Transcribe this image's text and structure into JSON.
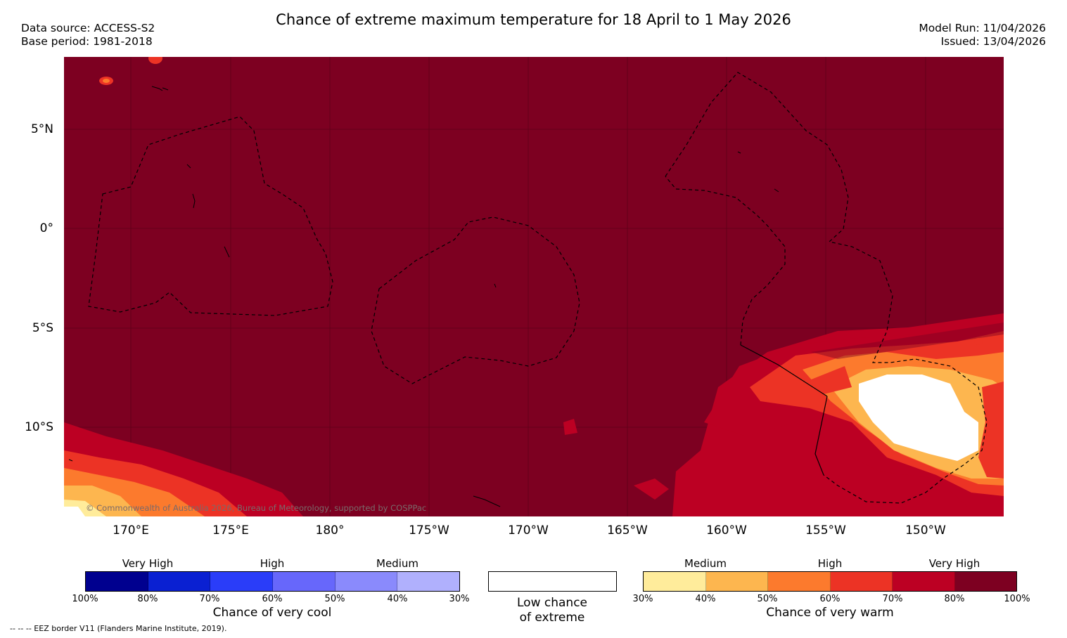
{
  "title": "Chance of extreme maximum temperature for 18 April to 1 May 2026",
  "header": {
    "data_source": "Data source: ACCESS-S2",
    "base_period": "Base period: 1981-2018",
    "model_run": "Model Run: 11/04/2026",
    "issued": "Issued: 13/04/2026"
  },
  "map": {
    "lat_labels": [
      "5°N",
      "0°",
      "5°S",
      "10°S"
    ],
    "lon_labels": [
      "170°E",
      "175°E",
      "180°",
      "175°W",
      "170°W",
      "165°W",
      "160°W",
      "155°W",
      "150°W"
    ],
    "copyright": "© Commonwealth of Australia 2026, Bureau of Meteorology, supported by COSPPac"
  },
  "legend": {
    "cool": {
      "categories": [
        "Very High",
        "High",
        "Medium"
      ],
      "ticks": [
        "100%",
        "80%",
        "70%",
        "60%",
        "50%",
        "40%",
        "30%"
      ],
      "colors": [
        "#00008f",
        "#0a20d2",
        "#2a3df9",
        "#6767fb",
        "#8a8afc",
        "#b0b0fd"
      ],
      "caption": "Chance of very cool"
    },
    "neutral": {
      "color": "#ffffff",
      "caption_line1": "Low chance",
      "caption_line2": "of extreme"
    },
    "warm": {
      "categories": [
        "Medium",
        "High",
        "Very High"
      ],
      "ticks": [
        "30%",
        "40%",
        "50%",
        "60%",
        "70%",
        "80%",
        "100%"
      ],
      "colors": [
        "#ffec9b",
        "#fdb64f",
        "#fc7a2d",
        "#ec3325",
        "#bc0023",
        "#7d0021"
      ],
      "caption": "Chance of very warm"
    }
  },
  "footnote": "-- -- -- EEZ border V11 (Flanders Marine Institute, 2019)."
}
